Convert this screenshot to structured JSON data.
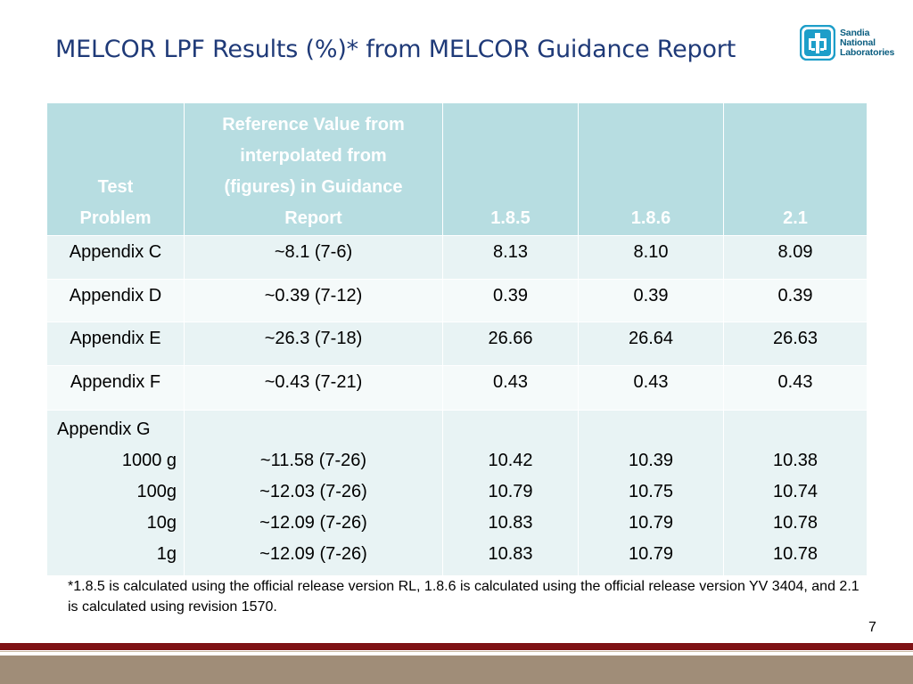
{
  "title": "MELCOR LPF Results (%)* from MELCOR Guidance Report",
  "logo": {
    "line1": "Sandia",
    "line2": "National",
    "line3": "Laboratories",
    "icon": "sandia-thunderbird-icon"
  },
  "table": {
    "headers": [
      {
        "lines": [
          "Test",
          "Problem"
        ]
      },
      {
        "lines": [
          "Reference Value from",
          "interpolated from",
          "(figures) in Guidance",
          "Report"
        ]
      },
      {
        "lines": [
          "1.8.5"
        ]
      },
      {
        "lines": [
          "1.8.6"
        ]
      },
      {
        "lines": [
          "2.1"
        ]
      }
    ],
    "rows": [
      {
        "problem": "Appendix C",
        "reference": "~8.1 (7-6)",
        "v185": "8.13",
        "v186": "8.10",
        "v21": "8.09"
      },
      {
        "problem": "Appendix D",
        "reference": "~0.39 (7-12)",
        "v185": "0.39",
        "v186": "0.39",
        "v21": "0.39"
      },
      {
        "problem": "Appendix E",
        "reference": "~26.3 (7-18)",
        "v185": "26.66",
        "v186": "26.64",
        "v21": "26.63"
      },
      {
        "problem": "Appendix F",
        "reference": "~0.43 (7-21)",
        "v185": "0.43",
        "v186": "0.43",
        "v21": "0.43"
      }
    ],
    "group": {
      "problem": "Appendix G",
      "sub": [
        {
          "label": "1000 g",
          "reference": "~11.58 (7-26)",
          "v185": "10.42",
          "v186": "10.39",
          "v21": "10.38"
        },
        {
          "label": "100g",
          "reference": "~12.03 (7-26)",
          "v185": "10.79",
          "v186": "10.75",
          "v21": "10.74"
        },
        {
          "label": "10g",
          "reference": "~12.09 (7-26)",
          "v185": "10.83",
          "v186": "10.79",
          "v21": "10.78"
        },
        {
          "label": "1g",
          "reference": "~12.09 (7-26)",
          "v185": "10.83",
          "v186": "10.79",
          "v21": "10.78"
        }
      ]
    }
  },
  "footnote": "*1.8.5 is calculated using the official release version RL, 1.8.6 is calculated using the official release version YV 3404, and 2.1 is calculated using revision 1570.",
  "page_number": "7",
  "colors": {
    "title": "#1f3a78",
    "header_bg": "#b7dde1",
    "row_odd": "#e8f3f4",
    "row_even": "#f5fafa",
    "bar_red": "#7e1215",
    "bar_tan": "#a08d78",
    "logo": "#0b5e80"
  }
}
